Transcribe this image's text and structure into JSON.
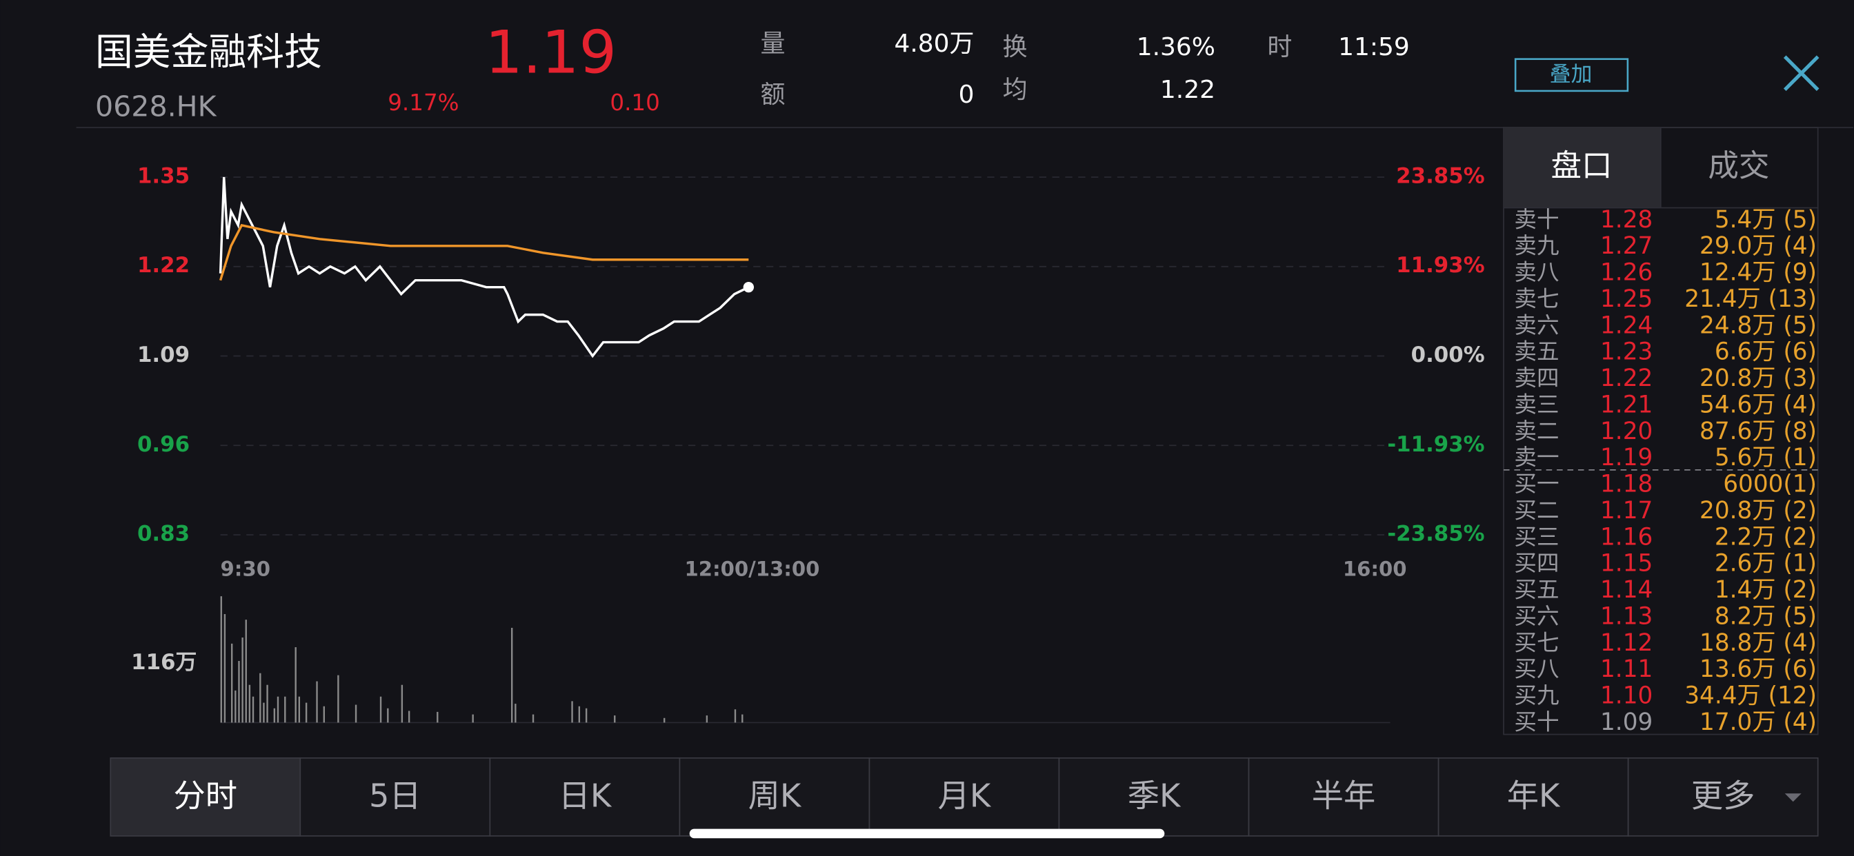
{
  "header": {
    "name": "国美金融科技",
    "code": "0628.HK",
    "price": "1.19",
    "change_pct": "9.17%",
    "change": "0.10",
    "stats": [
      [
        "量",
        "4.80万"
      ],
      [
        "额",
        "0"
      ],
      [
        "换",
        "1.36%"
      ],
      [
        "均",
        "1.22"
      ],
      [
        "时",
        "11:59"
      ]
    ],
    "overlay_button": "叠加"
  },
  "chart_data": {
    "type": "line",
    "xlim": [
      0,
      330
    ],
    "xticks": [
      {
        "value": 0,
        "label": "9:30"
      },
      {
        "value": 150,
        "label": "12:00/13:00"
      },
      {
        "value": 330,
        "label": "16:00"
      }
    ],
    "ylim": [
      0.83,
      1.35
    ],
    "yticks": [
      1.35,
      1.22,
      1.09,
      0.96,
      0.83
    ],
    "ytick_colors": [
      "#e5222f",
      "#e5222f",
      "#c8c8c8",
      "#19a34a",
      "#19a34a"
    ],
    "y2lim": [
      -23.85,
      23.85
    ],
    "y2ticks": [
      {
        "value": 23.85,
        "label": "23.85%"
      },
      {
        "value": 11.93,
        "label": "11.93%"
      },
      {
        "value": 0,
        "label": "0.00%"
      },
      {
        "value": -11.93,
        "label": "-11.93%"
      },
      {
        "value": -23.85,
        "label": "-23.85%"
      }
    ],
    "grid": true,
    "series": [
      {
        "color": "#ffffff",
        "x": [
          0,
          1,
          2,
          3,
          5,
          6,
          8,
          10,
          12,
          14,
          16,
          18,
          20,
          22,
          25,
          28,
          31,
          35,
          38,
          41,
          45,
          48,
          51,
          55,
          58,
          61,
          68,
          75,
          80,
          81,
          84,
          86,
          91,
          95,
          98,
          101,
          105,
          108,
          111,
          115,
          118,
          121,
          125,
          128,
          135,
          138,
          141,
          145,
          149
        ],
        "values": [
          1.21,
          1.35,
          1.26,
          1.3,
          1.28,
          1.31,
          1.29,
          1.27,
          1.25,
          1.19,
          1.25,
          1.28,
          1.24,
          1.21,
          1.22,
          1.21,
          1.22,
          1.21,
          1.22,
          1.2,
          1.22,
          1.2,
          1.18,
          1.2,
          1.2,
          1.2,
          1.2,
          1.19,
          1.19,
          1.18,
          1.14,
          1.15,
          1.15,
          1.14,
          1.14,
          1.12,
          1.09,
          1.11,
          1.11,
          1.11,
          1.11,
          1.12,
          1.13,
          1.14,
          1.14,
          1.15,
          1.16,
          1.18,
          1.19
        ]
      },
      {
        "color": "#f0962a",
        "x": [
          0,
          3,
          6,
          15,
          28,
          48,
          81,
          91,
          105,
          149
        ],
        "values": [
          1.2,
          1.25,
          1.28,
          1.27,
          1.26,
          1.25,
          1.25,
          1.24,
          1.23,
          1.23
        ]
      }
    ],
    "volume": {
      "color": "#8a8a8a",
      "ylim": [
        0,
        248
      ],
      "yticks": [
        {
          "value": 116,
          "label": "116万"
        }
      ],
      "x": [
        0,
        1,
        3,
        4,
        5,
        6,
        7,
        8,
        9,
        11,
        12,
        13,
        15,
        16,
        18,
        21,
        22,
        24,
        27,
        29,
        33,
        38,
        45,
        47,
        51,
        53,
        61,
        71,
        82,
        83,
        88,
        99,
        101,
        103,
        111,
        125,
        137,
        145,
        147
      ],
      "values": [
        248,
        213,
        155,
        63,
        121,
        167,
        202,
        74,
        51,
        97,
        39,
        74,
        28,
        51,
        51,
        148,
        51,
        39,
        81,
        32,
        93,
        35,
        51,
        28,
        74,
        23,
        21,
        16,
        186,
        37,
        16,
        42,
        32,
        28,
        14,
        9,
        14,
        26,
        16
      ]
    }
  },
  "order_book": {
    "tabs": [
      "盘口",
      "成交"
    ],
    "asks": [
      [
        "卖十",
        "1.28",
        "5.4万 (5)"
      ],
      [
        "卖九",
        "1.27",
        "29.0万 (4)"
      ],
      [
        "卖八",
        "1.26",
        "12.4万 (9)"
      ],
      [
        "卖七",
        "1.25",
        "21.4万 (13)"
      ],
      [
        "卖六",
        "1.24",
        "24.8万 (5)"
      ],
      [
        "卖五",
        "1.23",
        "6.6万 (6)"
      ],
      [
        "卖四",
        "1.22",
        "20.8万 (3)"
      ],
      [
        "卖三",
        "1.21",
        "54.6万 (4)"
      ],
      [
        "卖二",
        "1.20",
        "87.6万 (8)"
      ],
      [
        "卖一",
        "1.19",
        "5.6万 (1)"
      ]
    ],
    "bids": [
      [
        "买一",
        "1.18",
        "6000(1)"
      ],
      [
        "买二",
        "1.17",
        "20.8万 (2)"
      ],
      [
        "买三",
        "1.16",
        "2.2万 (2)"
      ],
      [
        "买四",
        "1.15",
        "2.6万 (1)"
      ],
      [
        "买五",
        "1.14",
        "1.4万 (2)"
      ],
      [
        "买六",
        "1.13",
        "8.2万 (5)"
      ],
      [
        "买七",
        "1.12",
        "18.8万 (4)"
      ],
      [
        "买八",
        "1.11",
        "13.6万 (6)"
      ],
      [
        "买九",
        "1.10",
        "34.4万 (12)"
      ],
      [
        "买十",
        "1.09",
        "17.0万 (4)"
      ]
    ]
  },
  "tabs": [
    "分时",
    "5日",
    "日K",
    "周K",
    "月K",
    "季K",
    "半年",
    "年K",
    "更多"
  ]
}
